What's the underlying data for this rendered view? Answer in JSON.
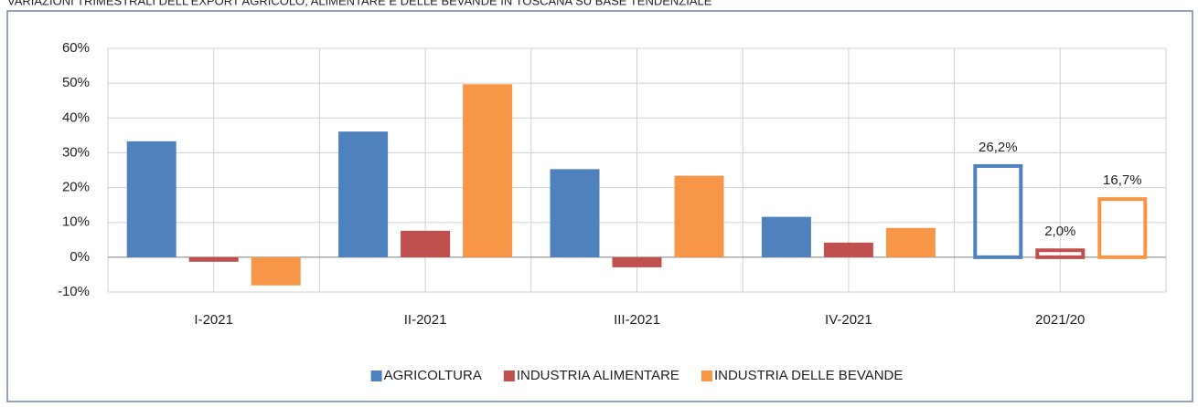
{
  "chart_data": {
    "type": "bar",
    "title": "VARIAZIONI TRIMESTRALI DELL'EXPORT AGRICOLO, ALIMENTARE E DELLE BEVANDE IN TOSCANA SU BASE TENDENZIALE",
    "categories": [
      "I-2021",
      "II-2021",
      "III-2021",
      "IV-2021",
      "2021/20"
    ],
    "outlined": [
      false,
      false,
      false,
      false,
      true
    ],
    "series": [
      {
        "name": "AGRICOLTURA",
        "color": "#4f81bd",
        "values": [
          33.3,
          36.1,
          25.3,
          11.6,
          26.2
        ],
        "value_labels": [
          null,
          null,
          null,
          null,
          "26,2%"
        ]
      },
      {
        "name": "INDUSTRIA ALIMENTARE",
        "color": "#c0504d",
        "values": [
          -1.3,
          7.6,
          -2.9,
          4.2,
          2.0
        ],
        "value_labels": [
          null,
          null,
          null,
          null,
          "2,0%"
        ]
      },
      {
        "name": "INDUSTRIA DELLE BEVANDE",
        "color": "#f79646",
        "values": [
          -8.1,
          49.7,
          23.4,
          8.4,
          16.7
        ],
        "value_labels": [
          null,
          null,
          null,
          null,
          "16,7%"
        ]
      }
    ],
    "ylim": [
      -10,
      60
    ],
    "yticks": [
      {
        "value": -10,
        "label": "-10%"
      },
      {
        "value": 0,
        "label": "0%"
      },
      {
        "value": 10,
        "label": "10%"
      },
      {
        "value": 20,
        "label": "20%"
      },
      {
        "value": 30,
        "label": "30%"
      },
      {
        "value": 40,
        "label": "40%"
      },
      {
        "value": 50,
        "label": "50%"
      },
      {
        "value": 60,
        "label": "60%"
      }
    ],
    "grid": true,
    "legend": "bottom"
  }
}
